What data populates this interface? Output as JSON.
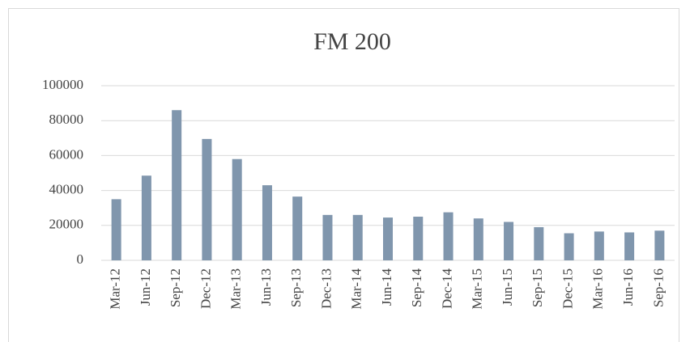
{
  "chart_data": {
    "type": "bar",
    "title": "FM 200",
    "categories": [
      "Mar-12",
      "Jun-12",
      "Sep-12",
      "Dec-12",
      "Mar-13",
      "Jun-13",
      "Sep-13",
      "Dec-13",
      "Mar-14",
      "Jun-14",
      "Sep-14",
      "Dec-14",
      "Mar-15",
      "Jun-15",
      "Sep-15",
      "Dec-15",
      "Mar-16",
      "Jun-16",
      "Sep-16"
    ],
    "values": [
      35000,
      48500,
      86000,
      69500,
      58000,
      43000,
      36500,
      26000,
      26000,
      24500,
      25000,
      27500,
      24000,
      22000,
      19000,
      15500,
      16500,
      16000,
      17000
    ],
    "color": "#8096ad",
    "ylim": [
      0,
      100000
    ],
    "yticks": [
      0,
      20000,
      40000,
      60000,
      80000,
      100000
    ],
    "grid": true
  }
}
